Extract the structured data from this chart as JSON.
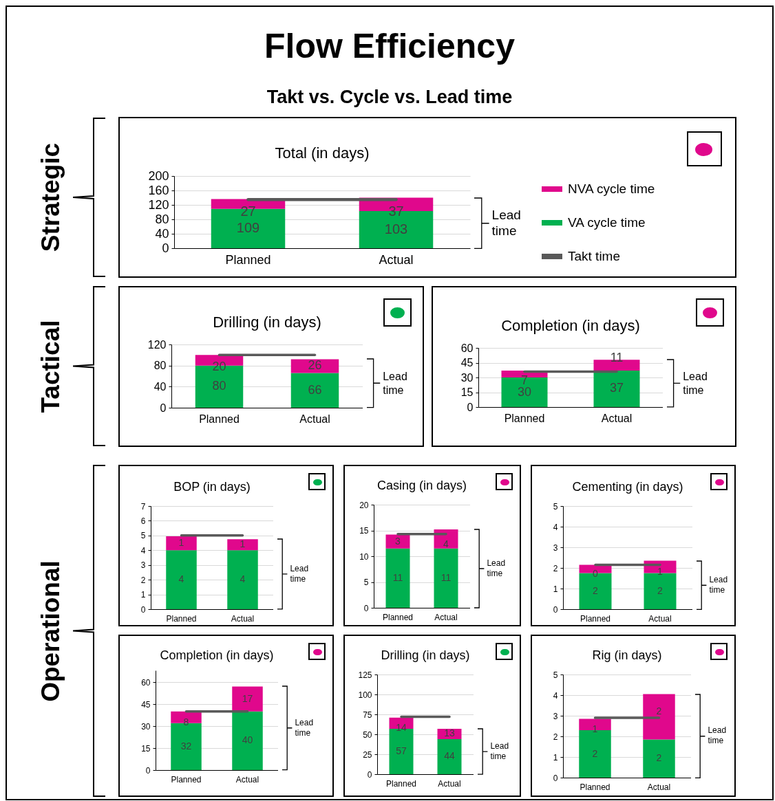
{
  "chart_data": [
    {
      "type": "other",
      "title": "Flow Efficiency",
      "subtitle": "Takt vs. Cycle vs. Lead time",
      "annotations": [
        "Strategic",
        "Tactical",
        "Operational"
      ]
    },
    {
      "type": "bar",
      "title": "Total (in days)",
      "categories": [
        "Planned",
        "Actual"
      ],
      "stacked": true,
      "data_labels": true,
      "grid": "y",
      "legend": "right",
      "ylim": [
        0,
        200
      ],
      "yticks": [
        0,
        40,
        80,
        120,
        160,
        200
      ],
      "series": [
        {
          "name": "VA cycle time",
          "color": "#00b050",
          "values": [
            109,
            103
          ]
        },
        {
          "name": "NVA cycle time",
          "color": "#e0088c",
          "values": [
            27,
            37
          ]
        }
      ],
      "ref_lines": [
        {
          "axis": "y",
          "value": 135,
          "label": "Takt time",
          "color": "#595959"
        }
      ],
      "annotations": [
        "Lead time"
      ]
    },
    {
      "type": "bar",
      "title": "Drilling (in days)",
      "categories": [
        "Planned",
        "Actual"
      ],
      "stacked": true,
      "data_labels": true,
      "grid": "y",
      "ylim": [
        0,
        120
      ],
      "yticks": [
        0,
        40,
        80,
        120
      ],
      "series": [
        {
          "color": "#00b050",
          "values": [
            80,
            66
          ]
        },
        {
          "color": "#e0088c",
          "values": [
            20,
            26
          ]
        }
      ],
      "ref_lines": [
        {
          "axis": "y",
          "value": 100,
          "color": "#595959"
        }
      ],
      "annotations": [
        "Lead time"
      ]
    },
    {
      "type": "bar",
      "title": "Completion (in days)",
      "categories": [
        "Planned",
        "Actual"
      ],
      "stacked": true,
      "data_labels": true,
      "grid": "y",
      "ylim": [
        0,
        60
      ],
      "yticks": [
        0,
        15,
        30,
        45,
        60
      ],
      "series": [
        {
          "color": "#00b050",
          "values": [
            30,
            37
          ]
        },
        {
          "color": "#e0088c",
          "values": [
            7,
            11
          ]
        }
      ],
      "ref_lines": [
        {
          "axis": "y",
          "value": 36,
          "color": "#595959"
        }
      ],
      "annotations": [
        "Lead time"
      ]
    },
    {
      "type": "bar",
      "title": "BOP (in days)",
      "categories": [
        "Planned",
        "Actual"
      ],
      "stacked": true,
      "grid": "y",
      "ylim": [
        0,
        7
      ],
      "yticks": [
        0,
        1,
        2,
        3,
        4,
        5,
        6,
        7
      ],
      "series": [
        {
          "color": "#00b050",
          "values": [
            4,
            4
          ],
          "value_labels": [
            "4",
            "4"
          ]
        },
        {
          "color": "#e0088c",
          "values": [
            0.95,
            0.75
          ],
          "value_labels": [
            "1",
            "1"
          ]
        }
      ],
      "ref_lines": [
        {
          "axis": "y",
          "value": 5,
          "color": "#595959"
        }
      ],
      "annotations": [
        "Lead time"
      ]
    },
    {
      "type": "bar",
      "title": "Casing (in days)",
      "categories": [
        "Planned",
        "Actual"
      ],
      "stacked": true,
      "grid": "y",
      "ylim": [
        0,
        20
      ],
      "yticks": [
        0,
        5,
        10,
        15,
        20
      ],
      "series": [
        {
          "color": "#00b050",
          "values": [
            11.5,
            11.5
          ],
          "value_labels": [
            "11",
            "11"
          ]
        },
        {
          "color": "#e0088c",
          "values": [
            2.7,
            3.7
          ],
          "value_labels": [
            "3",
            "4"
          ]
        }
      ],
      "ref_lines": [
        {
          "axis": "y",
          "value": 14.3,
          "color": "#595959"
        }
      ],
      "annotations": [
        "Lead time"
      ]
    },
    {
      "type": "bar",
      "title": "Cementing (in days)",
      "categories": [
        "Planned",
        "Actual"
      ],
      "stacked": true,
      "grid": "y",
      "ylim": [
        0,
        5
      ],
      "yticks": [
        0,
        1,
        2,
        3,
        4,
        5
      ],
      "series": [
        {
          "color": "#00b050",
          "values": [
            1.75,
            1.75
          ],
          "value_labels": [
            "2",
            "2"
          ]
        },
        {
          "color": "#e0088c",
          "values": [
            0.4,
            0.6
          ],
          "value_labels": [
            "0",
            "1"
          ]
        }
      ],
      "ref_lines": [
        {
          "axis": "y",
          "value": 2.15,
          "color": "#595959"
        }
      ],
      "annotations": [
        "Lead time"
      ]
    },
    {
      "type": "bar",
      "title": "Completion (in days)",
      "categories": [
        "Planned",
        "Actual"
      ],
      "stacked": true,
      "data_labels": true,
      "grid": "y",
      "ylim": [
        0,
        68
      ],
      "yticks": [
        0,
        15,
        30,
        45,
        60
      ],
      "series": [
        {
          "color": "#00b050",
          "values": [
            32,
            40
          ]
        },
        {
          "color": "#e0088c",
          "values": [
            8,
            17
          ]
        }
      ],
      "ref_lines": [
        {
          "axis": "y",
          "value": 40,
          "color": "#595959"
        }
      ],
      "annotations": [
        "Lead time"
      ]
    },
    {
      "type": "bar",
      "title": "Drilling (in days)",
      "categories": [
        "Planned",
        "Actual"
      ],
      "stacked": true,
      "data_labels": true,
      "grid": "y",
      "ylim": [
        0,
        125
      ],
      "yticks": [
        0,
        25,
        50,
        75,
        100,
        125
      ],
      "series": [
        {
          "color": "#00b050",
          "values": [
            57,
            44
          ]
        },
        {
          "color": "#e0088c",
          "values": [
            14,
            13
          ]
        }
      ],
      "ref_lines": [
        {
          "axis": "y",
          "value": 72,
          "color": "#595959"
        }
      ],
      "annotations": [
        "Lead time"
      ]
    },
    {
      "type": "bar",
      "title": "Rig (in days)",
      "categories": [
        "Planned",
        "Actual"
      ],
      "stacked": true,
      "grid": "y",
      "ylim": [
        0,
        5
      ],
      "yticks": [
        0,
        1,
        2,
        3,
        4,
        5
      ],
      "series": [
        {
          "color": "#00b050",
          "values": [
            2.3,
            1.85
          ],
          "value_labels": [
            "2",
            "2"
          ]
        },
        {
          "color": "#e0088c",
          "values": [
            0.55,
            2.2
          ],
          "value_labels": [
            "1",
            "2"
          ]
        }
      ],
      "ref_lines": [
        {
          "axis": "y",
          "value": 2.9,
          "color": "#595959"
        }
      ],
      "annotations": [
        "Lead time"
      ]
    }
  ]
}
